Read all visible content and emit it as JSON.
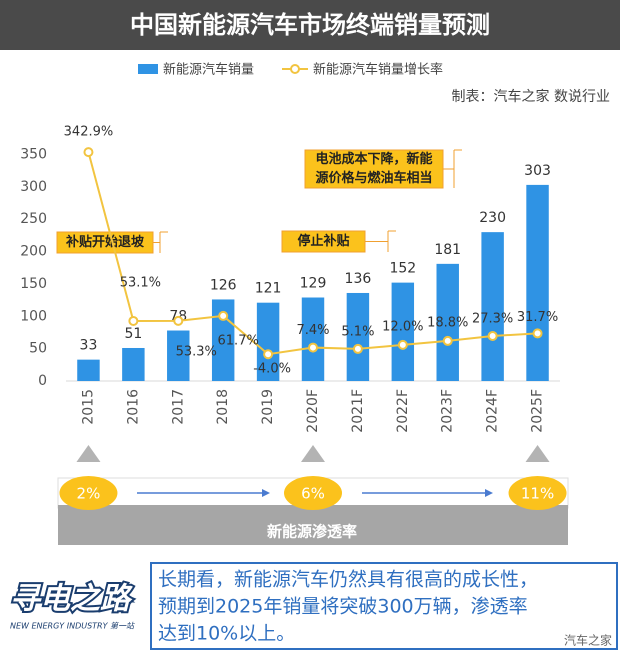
{
  "chart_data": {
    "type": "bar",
    "title": "中国新能源汽车市场终端销量预测",
    "source": "制表：汽车之家 数说行业",
    "categories": [
      "2015",
      "2016",
      "2017",
      "2018",
      "2019",
      "2020F",
      "2021F",
      "2022F",
      "2023F",
      "2024F",
      "2025F"
    ],
    "series": [
      {
        "name": "新能源汽车销量",
        "color": "#2f93e4",
        "values": [
          33,
          51,
          78,
          126,
          121,
          129,
          136,
          152,
          181,
          230,
          303
        ]
      },
      {
        "name": "新能源汽车销量增长率",
        "type": "line",
        "axis": "y2",
        "color": "#f2c440",
        "values": [
          342.9,
          53.1,
          53.3,
          61.7,
          -4.0,
          7.4,
          5.1,
          12.0,
          18.8,
          27.3,
          31.7
        ],
        "value_labels": [
          "342.9%",
          "53.1%",
          "53.3%",
          "61.7%",
          "-4.0%",
          "7.4%",
          "5.1%",
          "12.0%",
          "18.8%",
          "27.3%",
          "31.7%"
        ]
      }
    ],
    "ylim": [
      0,
      360
    ],
    "yticks": [
      0,
      50,
      100,
      150,
      200,
      250,
      300,
      350
    ],
    "y2lim": [
      -50,
      350
    ],
    "annotations": [
      "补贴开始退坡",
      "停止补贴",
      [
        "电池成本下降，新能",
        "源价格与燃油车相当"
      ]
    ],
    "penetration": {
      "label": "新能源渗透率",
      "values": [
        2,
        6,
        11
      ],
      "value_labels": [
        "2%",
        "6%",
        "11%"
      ]
    }
  },
  "note": [
    "长期看，新能源汽车仍然具有很高的成长性，",
    "预期到2025年销量将突破300万辆，渗透率",
    "达到10%以上。"
  ],
  "logo": {
    "title": "寻电之路",
    "subtitle": "NEW ENERGY INDUSTRY 第一站"
  },
  "watermark": "汽车之家"
}
